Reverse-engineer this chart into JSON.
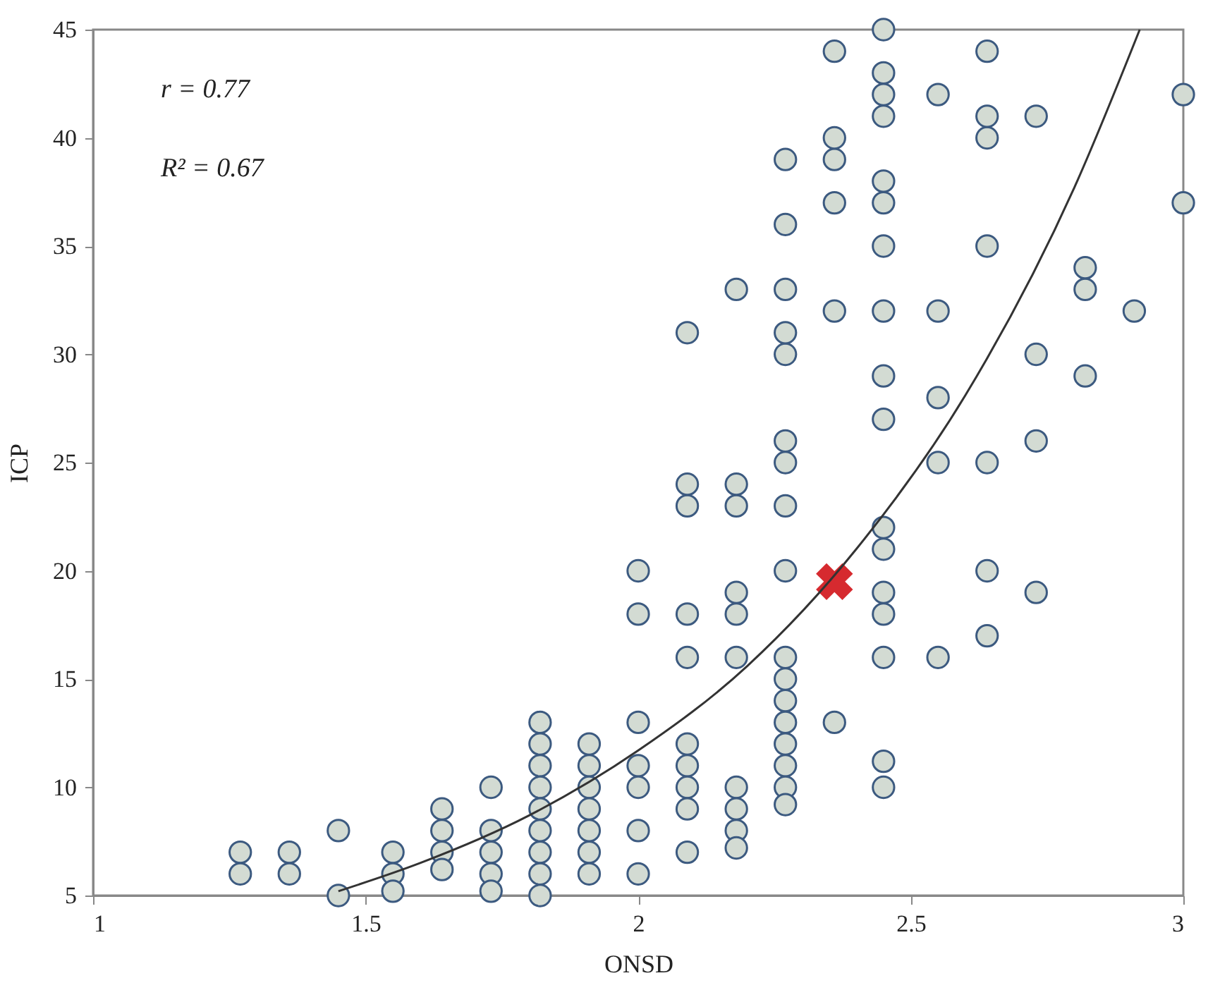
{
  "chart_data": {
    "type": "scatter",
    "xlabel": "ONSD",
    "ylabel": "ICP",
    "xlim": [
      1,
      3
    ],
    "xticks": [
      1,
      1.5,
      2,
      2.5,
      3
    ],
    "ylim": [
      5,
      45
    ],
    "yticks": [
      5,
      10,
      15,
      20,
      25,
      30,
      35,
      40,
      45
    ],
    "grid": false,
    "annotations": [
      "r = 0.77",
      "R² = 0.67"
    ],
    "series": [
      {
        "marker": "circle",
        "color": "#d3dbd3",
        "x": [
          1.27,
          1.27,
          1.36,
          1.36,
          1.45,
          1.45,
          1.55,
          1.55,
          1.55,
          1.64,
          1.64,
          1.64,
          1.64,
          1.73,
          1.73,
          1.73,
          1.73,
          1.73,
          1.82,
          1.82,
          1.82,
          1.82,
          1.82,
          1.82,
          1.82,
          1.82,
          1.82,
          1.91,
          1.91,
          1.91,
          1.91,
          1.91,
          1.91,
          1.91,
          2.0,
          2.0,
          2.0,
          2.0,
          2.0,
          2.0,
          2.0,
          2.09,
          2.09,
          2.09,
          2.09,
          2.09,
          2.09,
          2.09,
          2.09,
          2.09,
          2.09,
          2.18,
          2.18,
          2.18,
          2.18,
          2.18,
          2.18,
          2.18,
          2.18,
          2.18,
          2.18,
          2.27,
          2.27,
          2.27,
          2.27,
          2.27,
          2.27,
          2.27,
          2.27,
          2.27,
          2.27,
          2.27,
          2.27,
          2.27,
          2.27,
          2.27,
          2.27,
          2.27,
          2.36,
          2.36,
          2.36,
          2.36,
          2.36,
          2.36,
          2.45,
          2.45,
          2.45,
          2.45,
          2.45,
          2.45,
          2.45,
          2.45,
          2.45,
          2.45,
          2.45,
          2.45,
          2.45,
          2.45,
          2.45,
          2.45,
          2.45,
          2.55,
          2.55,
          2.55,
          2.55,
          2.55,
          2.64,
          2.64,
          2.64,
          2.64,
          2.64,
          2.64,
          2.64,
          2.73,
          2.73,
          2.73,
          2.73,
          2.82,
          2.82,
          2.82,
          2.91,
          3.0,
          3.0
        ],
        "values": [
          7,
          6,
          7,
          6,
          8,
          5,
          7,
          6,
          5.2,
          9,
          8,
          7,
          6.2,
          10,
          8,
          7,
          6,
          5.2,
          13,
          12,
          11,
          10,
          9,
          8,
          7,
          6,
          5,
          12,
          11,
          10,
          9,
          8,
          7,
          6,
          13,
          11,
          10,
          8,
          6,
          18,
          20,
          12,
          11,
          10,
          9,
          7,
          16,
          18,
          23,
          24,
          31,
          10,
          9,
          8,
          7.2,
          16,
          18,
          19,
          23,
          24,
          33,
          16,
          15,
          14,
          13,
          12,
          11,
          10,
          9.2,
          20,
          23,
          25,
          26,
          30,
          31,
          33,
          36,
          39,
          13,
          32,
          37,
          39,
          40,
          44,
          10,
          11.2,
          16,
          18,
          19,
          21,
          22,
          27,
          29,
          32,
          35,
          37,
          38,
          41,
          42,
          43,
          45,
          16,
          25,
          28,
          32,
          42,
          17,
          20,
          25,
          35,
          40,
          41,
          44,
          19,
          26,
          30,
          41,
          29,
          33,
          34,
          32,
          37,
          42
        ]
      },
      {
        "marker": "cross",
        "color": "#d62a2f",
        "x": [
          2.36
        ],
        "values": [
          19.5
        ]
      },
      {
        "type": "line",
        "color": "#333333",
        "line_style": "solid",
        "x": [
          1.45,
          1.6,
          1.8,
          2.0,
          2.2,
          2.4,
          2.6,
          2.8,
          2.92
        ],
        "values": [
          5.2,
          6.5,
          8.7,
          11.7,
          15.6,
          21.0,
          28.1,
          37.7,
          45.0
        ]
      }
    ]
  }
}
